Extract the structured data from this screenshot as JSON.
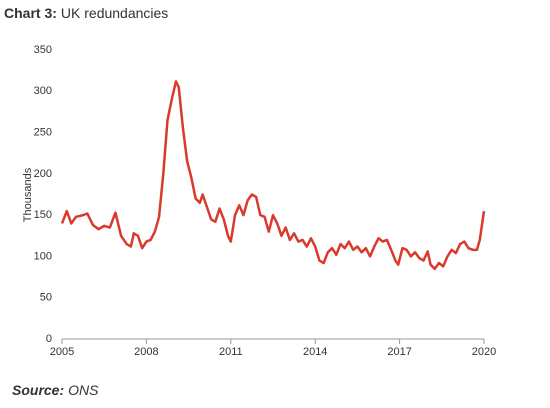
{
  "chart_data": {
    "type": "line",
    "title_label": "Chart 3:",
    "title": "UK redundancies",
    "y_label": "Thousands",
    "source_label": "Source:",
    "source": "ONS",
    "x": [
      2005.0,
      2005.17,
      2005.33,
      2005.5,
      2005.75,
      2005.9,
      2006.1,
      2006.3,
      2006.5,
      2006.7,
      2006.9,
      2007.1,
      2007.3,
      2007.45,
      2007.55,
      2007.7,
      2007.85,
      2008.0,
      2008.15,
      2008.3,
      2008.45,
      2008.6,
      2008.75,
      2008.9,
      2009.05,
      2009.15,
      2009.3,
      2009.45,
      2009.6,
      2009.75,
      2009.9,
      2010.0,
      2010.15,
      2010.3,
      2010.45,
      2010.6,
      2010.75,
      2010.9,
      2011.0,
      2011.15,
      2011.3,
      2011.45,
      2011.6,
      2011.75,
      2011.9,
      2012.05,
      2012.2,
      2012.35,
      2012.5,
      2012.65,
      2012.8,
      2012.95,
      2013.1,
      2013.25,
      2013.4,
      2013.55,
      2013.7,
      2013.85,
      2014.0,
      2014.15,
      2014.3,
      2014.45,
      2014.6,
      2014.75,
      2014.9,
      2015.05,
      2015.2,
      2015.35,
      2015.5,
      2015.65,
      2015.8,
      2015.95,
      2016.1,
      2016.25,
      2016.4,
      2016.55,
      2016.7,
      2016.85,
      2016.95,
      2017.1,
      2017.25,
      2017.4,
      2017.55,
      2017.7,
      2017.85,
      2018.0,
      2018.1,
      2018.25,
      2018.4,
      2018.55,
      2018.7,
      2018.85,
      2019.0,
      2019.15,
      2019.3,
      2019.45,
      2019.6,
      2019.75,
      2019.85,
      2020.0
    ],
    "series": [
      {
        "color": "#d93a2c",
        "values": [
          140,
          155,
          140,
          148,
          150,
          152,
          138,
          133,
          137,
          135,
          153,
          125,
          115,
          112,
          128,
          125,
          110,
          118,
          120,
          130,
          148,
          200,
          265,
          290,
          312,
          305,
          255,
          215,
          195,
          170,
          165,
          175,
          160,
          145,
          142,
          158,
          145,
          125,
          118,
          150,
          162,
          150,
          168,
          175,
          172,
          150,
          148,
          130,
          150,
          140,
          125,
          135,
          120,
          128,
          118,
          120,
          112,
          122,
          112,
          95,
          92,
          105,
          110,
          102,
          115,
          110,
          118,
          108,
          112,
          105,
          110,
          100,
          112,
          122,
          118,
          120,
          108,
          95,
          90,
          110,
          108,
          100,
          105,
          98,
          95,
          106,
          90,
          85,
          92,
          88,
          100,
          108,
          104,
          115,
          118,
          110,
          108,
          108,
          120,
          155
        ]
      }
    ],
    "xlim": [
      2005,
      2020
    ],
    "xticks": [
      2005,
      2008,
      2011,
      2014,
      2017,
      2020
    ],
    "ylim": [
      0,
      350
    ],
    "yticks": [
      0,
      50,
      100,
      150,
      200,
      250,
      300,
      350
    ],
    "grid": false
  }
}
